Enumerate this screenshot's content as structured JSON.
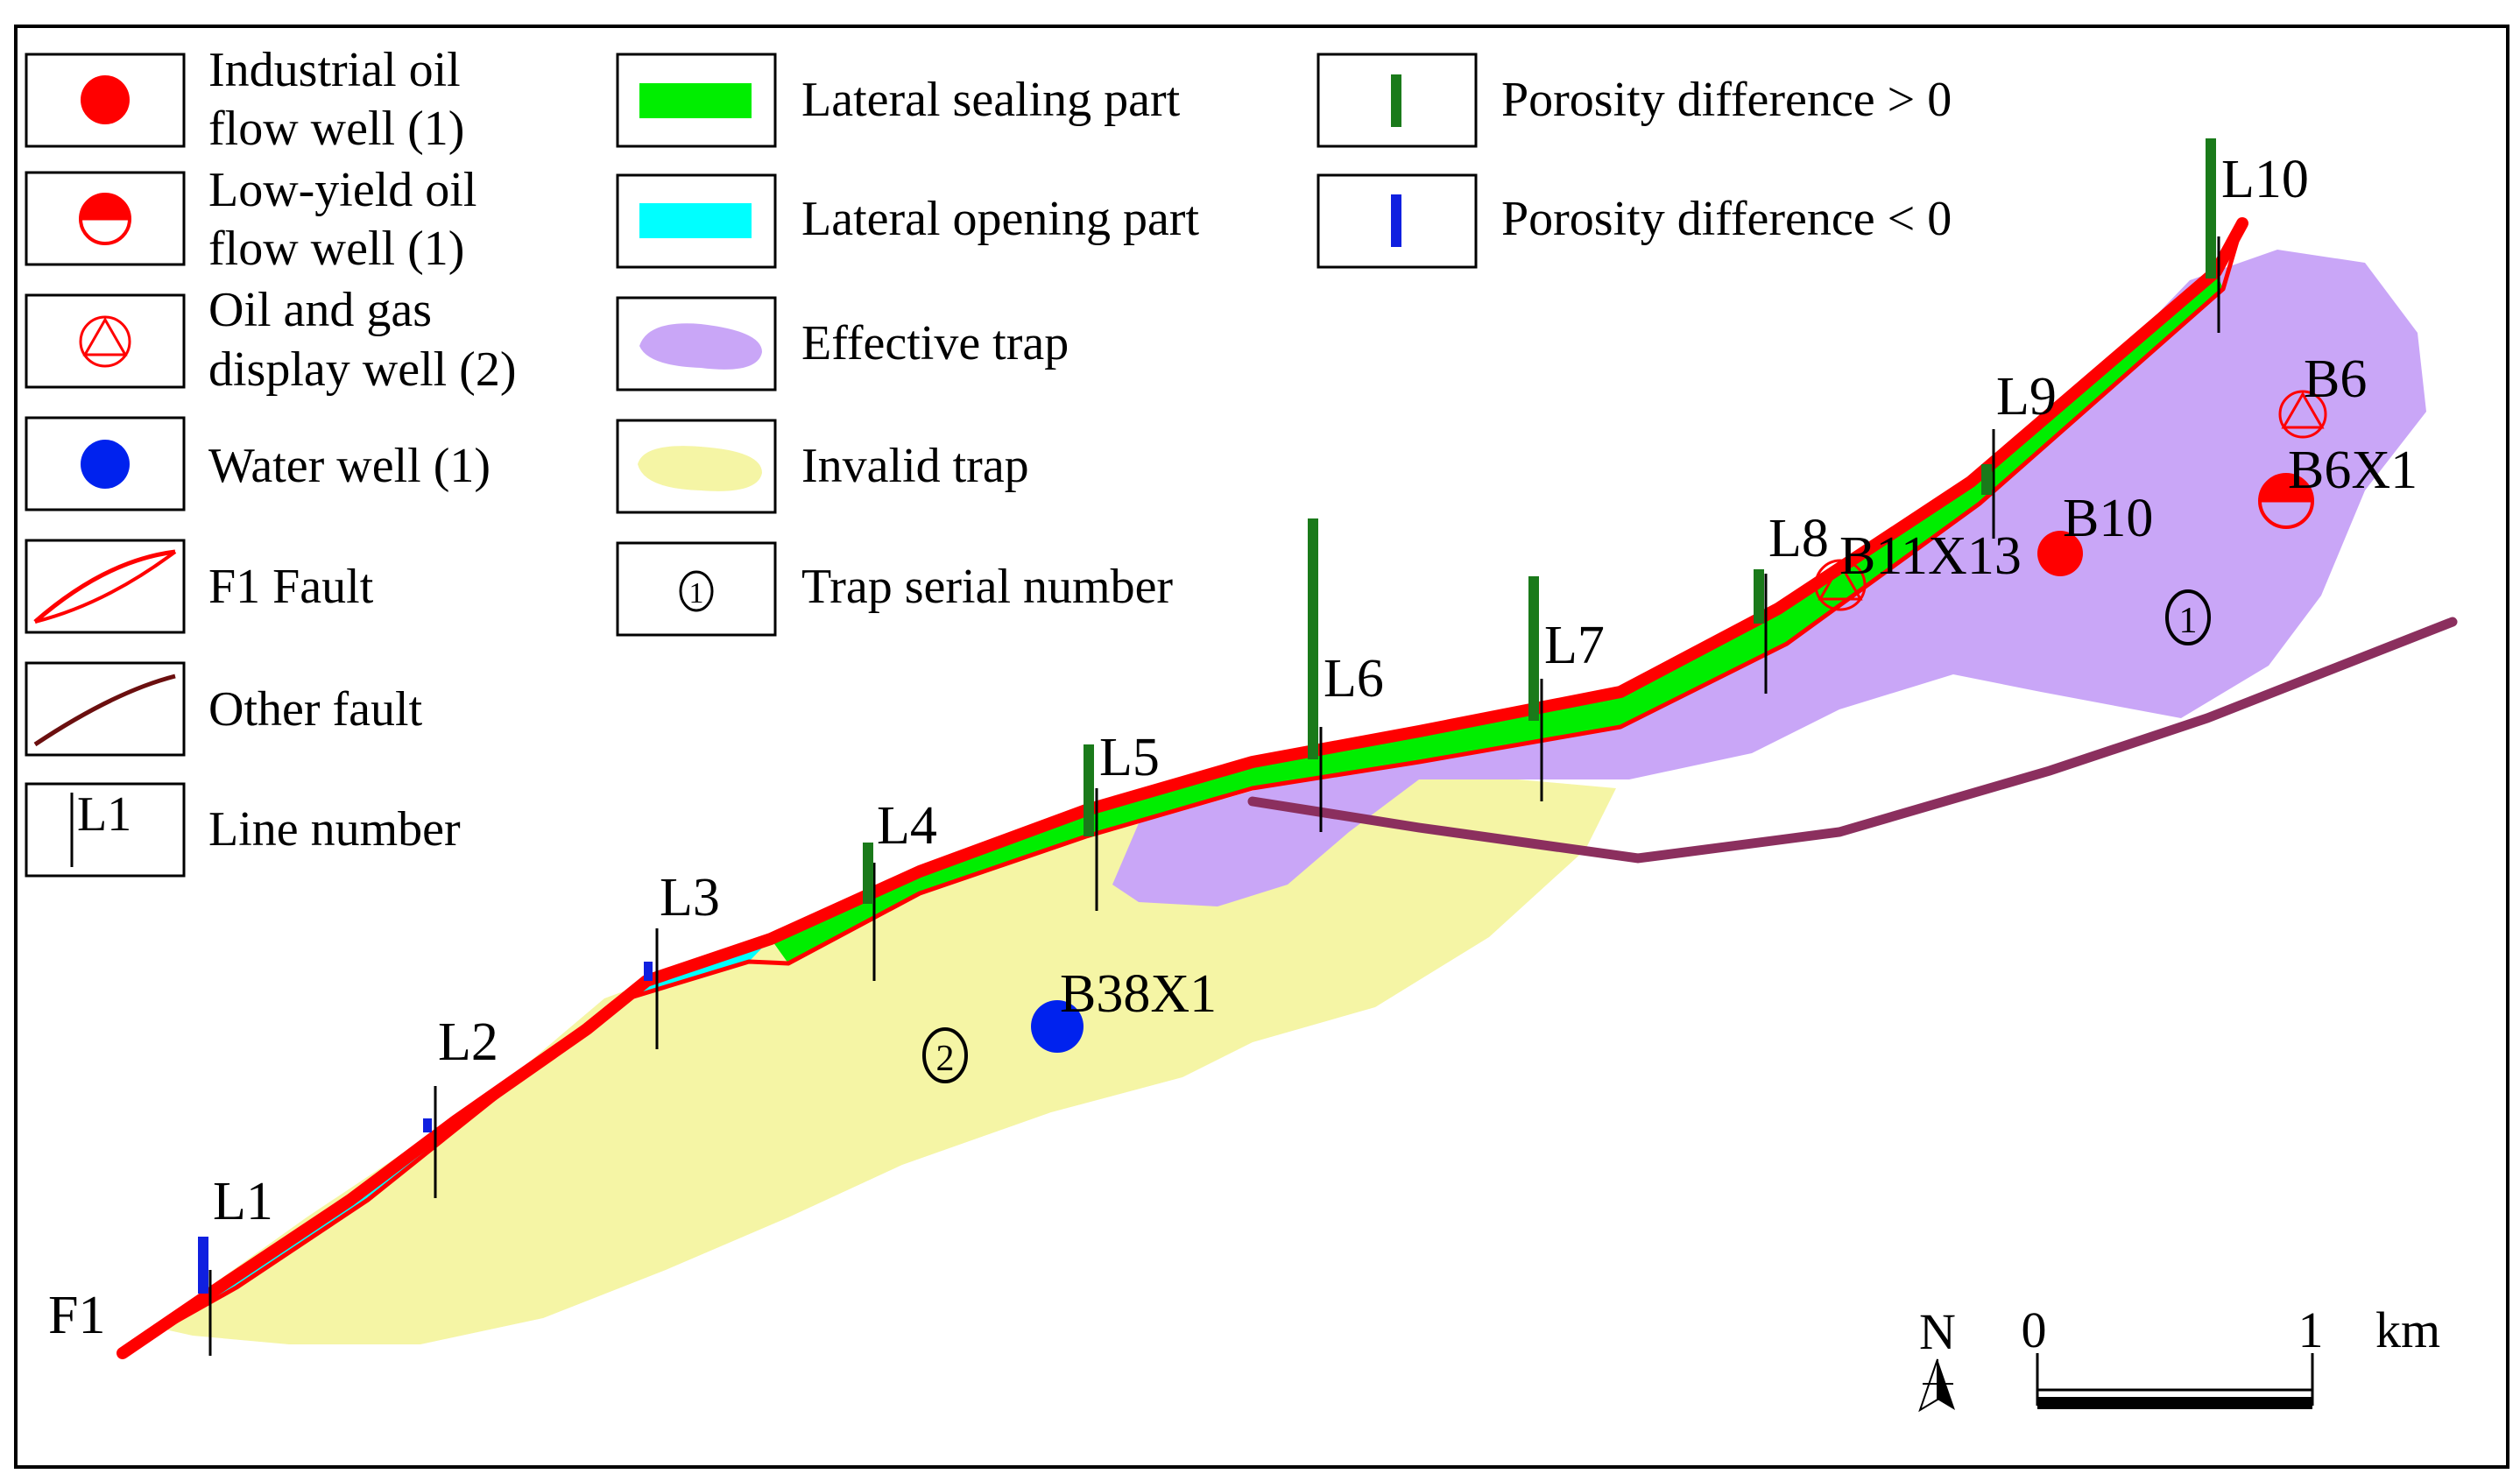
{
  "legend": {
    "items": [
      {
        "key": "industrial",
        "line1": "Industrial oil",
        "line2": "flow well (1)"
      },
      {
        "key": "lowyield",
        "line1": "Low-yield oil",
        "line2": "flow well (1)"
      },
      {
        "key": "display",
        "line1": "Oil and gas",
        "line2": "display well (2)"
      },
      {
        "key": "water",
        "line1": "Water well (1)"
      },
      {
        "key": "f1fault",
        "line1": "F1 Fault"
      },
      {
        "key": "otherfault",
        "line1": "Other fault"
      },
      {
        "key": "linenumber",
        "line1": "Line number",
        "symbol_text": "L1"
      },
      {
        "key": "sealing",
        "line1": "Lateral sealing part"
      },
      {
        "key": "opening",
        "line1": "Lateral opening part"
      },
      {
        "key": "effective",
        "line1": "Effective trap"
      },
      {
        "key": "invalid",
        "line1": "Invalid trap"
      },
      {
        "key": "serial",
        "line1": "Trap serial number",
        "symbol_text": "1"
      },
      {
        "key": "porpos",
        "line1": "Porosity difference > 0"
      },
      {
        "key": "porneg",
        "line1": "Porosity difference < 0"
      }
    ]
  },
  "lines": [
    "L1",
    "L2",
    "L3",
    "L4",
    "L5",
    "L6",
    "L7",
    "L8",
    "L9",
    "L10"
  ],
  "fault_label": "F1",
  "wells": {
    "b6": "B6",
    "b6x1": "B6X1",
    "b10": "B10",
    "b11x13": "B11X13",
    "b38x1": "B38X1"
  },
  "trap_numbers": [
    "1",
    "2"
  ],
  "north": "N",
  "scale": {
    "start": "0",
    "end": "1",
    "unit": "km"
  },
  "colors": {
    "fault_red": "#ff0000",
    "sealing_green": "#00ee00",
    "opening_cyan": "#00ffff",
    "effective_purple": "#c9a6f7",
    "invalid_yellow": "#f5f5a5",
    "other_fault": "#8b2f5e",
    "water_blue": "#0022ee",
    "porosity_pos": "#1a7a1a",
    "porosity_neg": "#1020e0"
  }
}
